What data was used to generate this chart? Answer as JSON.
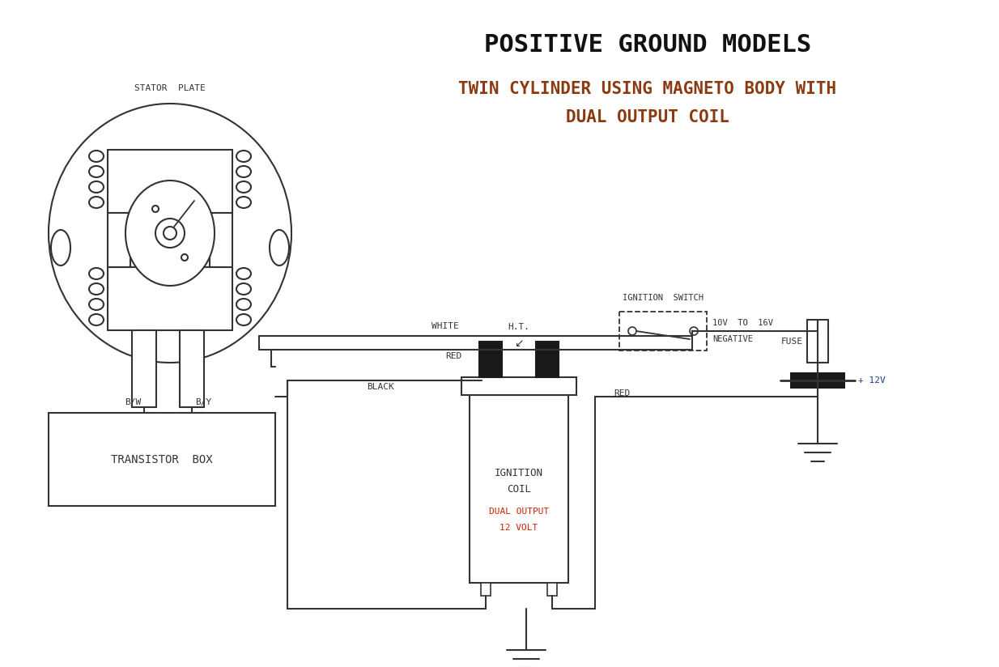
{
  "title": "POSITIVE GROUND MODELS",
  "subtitle1": "TWIN CYLINDER USING MAGNETO BODY WITH",
  "subtitle2": "DUAL OUTPUT COIL",
  "lbl_stator": "STATOR  PLATE",
  "lbl_bw": "B/W",
  "lbl_by": "B/Y",
  "lbl_transistor": "TRANSISTOR  BOX",
  "lbl_white": "WHITE",
  "lbl_red": "RED",
  "lbl_black": "BLACK",
  "lbl_ht": "H.T.",
  "lbl_coil1": "IGNITION",
  "lbl_coil2": "COIL",
  "lbl_dual": "DUAL OUTPUT",
  "lbl_12v_coil": "12 VOLT",
  "lbl_ignswitch": "IGNITION  SWITCH",
  "lbl_10v": "10V  TO  16V",
  "lbl_neg": "NEGATIVE",
  "lbl_fuse": "FUSE",
  "lbl_12v_bat": "+ 12V",
  "lbl_red2": "RED",
  "c_title": "#111111",
  "c_subtitle": "#8B3A10",
  "c_black": "#333333",
  "c_red_text": "#cc2200",
  "c_blue_text": "#1a3a8a",
  "c_bg": "#ffffff",
  "c_tower": "#1a1a1a"
}
